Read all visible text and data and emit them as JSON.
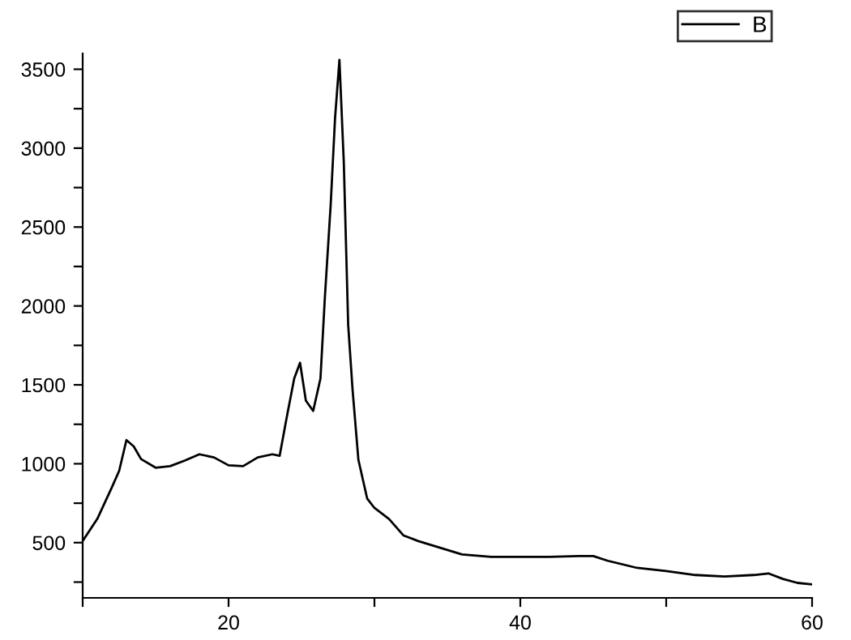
{
  "chart_data": {
    "type": "line",
    "xlim": [
      10,
      60
    ],
    "xticks": [
      {
        "value": 10,
        "label": null
      },
      20,
      {
        "value": 30,
        "label": null
      },
      40,
      {
        "value": 50,
        "label": null
      },
      60
    ],
    "ylim": [
      150,
      3600
    ],
    "yticks": [
      {
        "value": 250,
        "label": null
      },
      500,
      {
        "value": 750,
        "label": null
      },
      1000,
      {
        "value": 1250,
        "label": null
      },
      1500,
      {
        "value": 1750,
        "label": null
      },
      2000,
      {
        "value": 2250,
        "label": null
      },
      2500,
      {
        "value": 2750,
        "label": null
      },
      3000,
      {
        "value": 3250,
        "label": null
      },
      3500
    ],
    "grid": false,
    "legend": "top right",
    "marker": "none",
    "line_style": "solid",
    "series": [
      {
        "name": "B",
        "color": "#000000",
        "x": [
          10,
          11,
          12,
          12.5,
          13,
          13.5,
          14,
          15,
          16,
          17,
          18,
          19,
          20,
          21,
          22,
          23,
          23.5,
          24,
          24.5,
          24.9,
          25.3,
          25.8,
          26.3,
          26.6,
          27,
          27.3,
          27.6,
          27.9,
          28.2,
          28.5,
          28.9,
          29.5,
          30,
          31,
          32,
          33,
          36,
          38,
          40,
          42,
          44,
          45,
          46,
          48,
          50,
          52,
          54,
          56,
          57,
          58,
          59,
          60
        ],
        "values": [
          510,
          650,
          850,
          955,
          1150,
          1110,
          1030,
          975,
          985,
          1020,
          1060,
          1040,
          990,
          985,
          1040,
          1060,
          1050,
          1300,
          1540,
          1640,
          1400,
          1335,
          1540,
          2050,
          2640,
          3190,
          3560,
          2910,
          1880,
          1470,
          1025,
          780,
          720,
          650,
          545,
          510,
          425,
          410,
          410,
          410,
          415,
          415,
          385,
          340,
          320,
          295,
          285,
          295,
          305,
          270,
          245,
          235
        ]
      }
    ]
  }
}
